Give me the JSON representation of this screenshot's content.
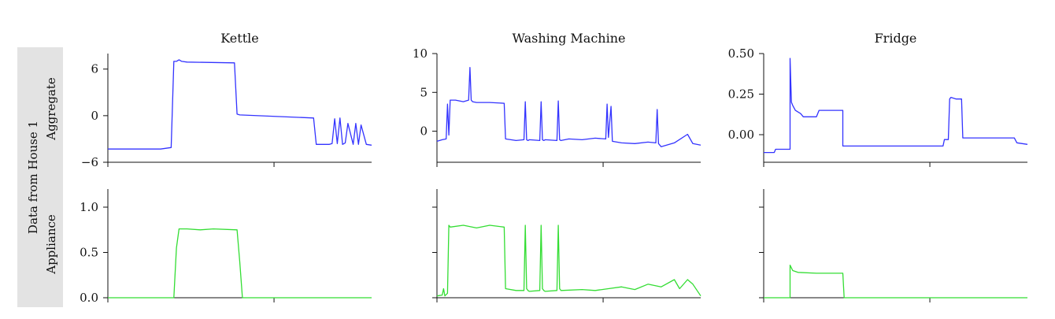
{
  "figure": {
    "row_header": {
      "house": "Data from House 1",
      "aggregate": "Aggregate",
      "appliance": "Appliance"
    }
  },
  "chart_data": [
    {
      "type": "line",
      "title": "Kettle",
      "row": "Aggregate",
      "xlabel": "",
      "ylabel": "",
      "ylim": [
        -6,
        8
      ],
      "yticks": [
        6,
        0,
        -6
      ],
      "ytick_labels": [
        "6",
        "0",
        "−6"
      ],
      "x": [
        0,
        0.2,
        0.24,
        0.25,
        0.26,
        0.27,
        0.28,
        0.3,
        0.48,
        0.49,
        0.5,
        0.78,
        0.79,
        0.84,
        0.85,
        0.86,
        0.87,
        0.88,
        0.89,
        0.9,
        0.91,
        0.93,
        0.94,
        0.95,
        0.96,
        0.98,
        1.0
      ],
      "series": [
        {
          "color": "#3333ff",
          "values": [
            -4.3,
            -4.3,
            -4.1,
            7.0,
            7.0,
            7.2,
            7.0,
            6.9,
            6.8,
            0.2,
            0.1,
            -0.3,
            -3.7,
            -3.7,
            -3.6,
            -0.4,
            -3.6,
            -0.3,
            -3.7,
            -3.5,
            -1.0,
            -3.7,
            -1.0,
            -3.7,
            -1.2,
            -3.7,
            -3.8
          ]
        }
      ]
    },
    {
      "type": "line",
      "title": "Kettle",
      "row": "Appliance",
      "xlabel": "",
      "ylabel": "",
      "ylim": [
        0,
        1.2
      ],
      "yticks": [
        1.0,
        0.5,
        0.0
      ],
      "ytick_labels": [
        "1.0",
        "0.5",
        "0.0"
      ],
      "x": [
        0,
        0.25,
        0.26,
        0.27,
        0.3,
        0.35,
        0.4,
        0.49,
        0.5,
        0.51,
        1.0
      ],
      "series": [
        {
          "color": "#33dd33",
          "values": [
            0,
            0,
            0.55,
            0.76,
            0.76,
            0.75,
            0.76,
            0.75,
            0.4,
            0,
            0
          ]
        }
      ]
    },
    {
      "type": "line",
      "title": "Washing Machine",
      "row": "Aggregate",
      "xlabel": "",
      "ylabel": "",
      "ylim": [
        -4,
        10
      ],
      "yticks": [
        10,
        5,
        0
      ],
      "ytick_labels": [
        "10",
        "5",
        "0"
      ],
      "x": [
        0,
        0.02,
        0.035,
        0.04,
        0.045,
        0.05,
        0.07,
        0.1,
        0.12,
        0.125,
        0.13,
        0.135,
        0.15,
        0.2,
        0.255,
        0.26,
        0.3,
        0.33,
        0.335,
        0.34,
        0.345,
        0.35,
        0.39,
        0.395,
        0.4,
        0.405,
        0.41,
        0.455,
        0.46,
        0.465,
        0.47,
        0.5,
        0.55,
        0.6,
        0.64,
        0.645,
        0.65,
        0.66,
        0.665,
        0.7,
        0.75,
        0.8,
        0.83,
        0.835,
        0.84,
        0.85,
        0.9,
        0.95,
        0.97,
        1.0
      ],
      "series": [
        {
          "color": "#3333ff",
          "values": [
            -1.3,
            -1.1,
            -1.0,
            3.5,
            -0.5,
            4.0,
            4.0,
            3.8,
            4.0,
            8.2,
            4.0,
            3.8,
            3.7,
            3.7,
            3.6,
            -1.0,
            -1.2,
            -1.1,
            3.8,
            -1.1,
            -1.2,
            -1.1,
            -1.2,
            3.8,
            -1.1,
            -1.2,
            -1.1,
            -1.2,
            3.9,
            -1.1,
            -1.2,
            -1.0,
            -1.1,
            -0.9,
            -1.0,
            3.5,
            -0.8,
            3.2,
            -1.3,
            -1.5,
            -1.6,
            -1.4,
            -1.5,
            2.8,
            -1.6,
            -2.0,
            -1.5,
            -0.4,
            -1.6,
            -1.8
          ]
        }
      ]
    },
    {
      "type": "line",
      "title": "Washing Machine",
      "row": "Appliance",
      "xlabel": "",
      "ylabel": "",
      "ylim": [
        0,
        1.2
      ],
      "yticks": [
        1.0,
        0.5,
        0.0
      ],
      "ytick_labels": [
        "",
        "",
        ""
      ],
      "x": [
        0,
        0.02,
        0.025,
        0.03,
        0.04,
        0.045,
        0.05,
        0.1,
        0.15,
        0.2,
        0.255,
        0.26,
        0.3,
        0.33,
        0.335,
        0.34,
        0.345,
        0.35,
        0.39,
        0.395,
        0.4,
        0.405,
        0.41,
        0.455,
        0.46,
        0.465,
        0.47,
        0.55,
        0.6,
        0.65,
        0.7,
        0.75,
        0.8,
        0.85,
        0.9,
        0.92,
        0.95,
        0.97,
        1.0
      ],
      "series": [
        {
          "color": "#33dd33",
          "values": [
            0.02,
            0.03,
            0.1,
            0.02,
            0.05,
            0.8,
            0.78,
            0.8,
            0.77,
            0.8,
            0.78,
            0.1,
            0.08,
            0.08,
            0.8,
            0.1,
            0.08,
            0.07,
            0.08,
            0.8,
            0.1,
            0.08,
            0.07,
            0.08,
            0.8,
            0.1,
            0.08,
            0.09,
            0.08,
            0.1,
            0.12,
            0.09,
            0.15,
            0.12,
            0.2,
            0.1,
            0.2,
            0.15,
            0.02
          ]
        }
      ]
    },
    {
      "type": "line",
      "title": "Fridge",
      "row": "Aggregate",
      "xlabel": "",
      "ylabel": "",
      "ylim": [
        -0.17,
        0.5
      ],
      "yticks": [
        0.5,
        0.25,
        0.0
      ],
      "ytick_labels": [
        "0.50",
        "0.25",
        "0.00"
      ],
      "x": [
        0,
        0.04,
        0.045,
        0.1,
        0.1,
        0.105,
        0.11,
        0.12,
        0.14,
        0.15,
        0.2,
        0.21,
        0.26,
        0.3,
        0.3,
        0.6,
        0.68,
        0.685,
        0.7,
        0.705,
        0.71,
        0.73,
        0.75,
        0.755,
        0.76,
        0.95,
        0.96,
        1.0
      ],
      "series": [
        {
          "color": "#3333ff",
          "values": [
            -0.11,
            -0.11,
            -0.09,
            -0.09,
            0.47,
            0.2,
            0.18,
            0.15,
            0.13,
            0.11,
            0.11,
            0.15,
            0.15,
            0.15,
            -0.07,
            -0.07,
            -0.07,
            -0.03,
            -0.03,
            0.22,
            0.23,
            0.22,
            0.22,
            -0.02,
            -0.02,
            -0.02,
            -0.05,
            -0.06
          ]
        }
      ]
    },
    {
      "type": "line",
      "title": "Fridge",
      "row": "Appliance",
      "xlabel": "",
      "ylabel": "",
      "ylim": [
        0,
        1.2
      ],
      "yticks": [
        1.0,
        0.5,
        0.0
      ],
      "ytick_labels": [
        "",
        "",
        ""
      ],
      "x": [
        0,
        0.1,
        0.1,
        0.11,
        0.13,
        0.2,
        0.3,
        0.305,
        1.0
      ],
      "series": [
        {
          "color": "#33dd33",
          "values": [
            0,
            0,
            0.36,
            0.3,
            0.28,
            0.27,
            0.27,
            0,
            0
          ]
        }
      ]
    }
  ]
}
